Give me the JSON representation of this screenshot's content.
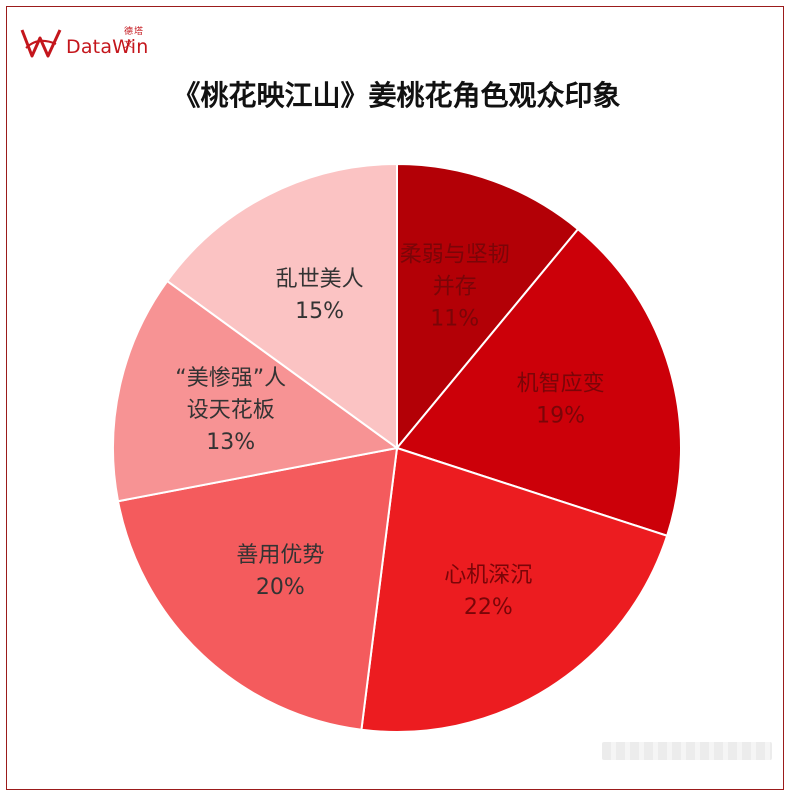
{
  "brand": {
    "name": "DataWin",
    "name_cn": "德塔文"
  },
  "title": "《桃花映江山》姜桃花角色观众印象",
  "colors": {
    "brand": "#c4161c",
    "border": "#9b1b1b"
  },
  "chart_data": {
    "type": "pie",
    "title": "《桃花映江山》姜桃花角色观众印象",
    "start": "12 o'clock",
    "direction": "clockwise",
    "slices": [
      {
        "label": [
          "柔弱与坚韧",
          "并存"
        ],
        "value": 11,
        "display": "11%",
        "color": "#b30006"
      },
      {
        "label": [
          "机智应变"
        ],
        "value": 19,
        "display": "19%",
        "color": "#cc0009"
      },
      {
        "label": [
          "心机深沉"
        ],
        "value": 22,
        "display": "22%",
        "color": "#ec1c20"
      },
      {
        "label": [
          "善用优势"
        ],
        "value": 20,
        "display": "20%",
        "color": "#f45b5d"
      },
      {
        "label": [
          "“美惨强”人",
          "设天花板"
        ],
        "value": 13,
        "display": "13%",
        "color": "#f79394"
      },
      {
        "label": [
          "乱世美人"
        ],
        "value": 15,
        "display": "15%",
        "color": "#fbc3c3"
      }
    ]
  }
}
